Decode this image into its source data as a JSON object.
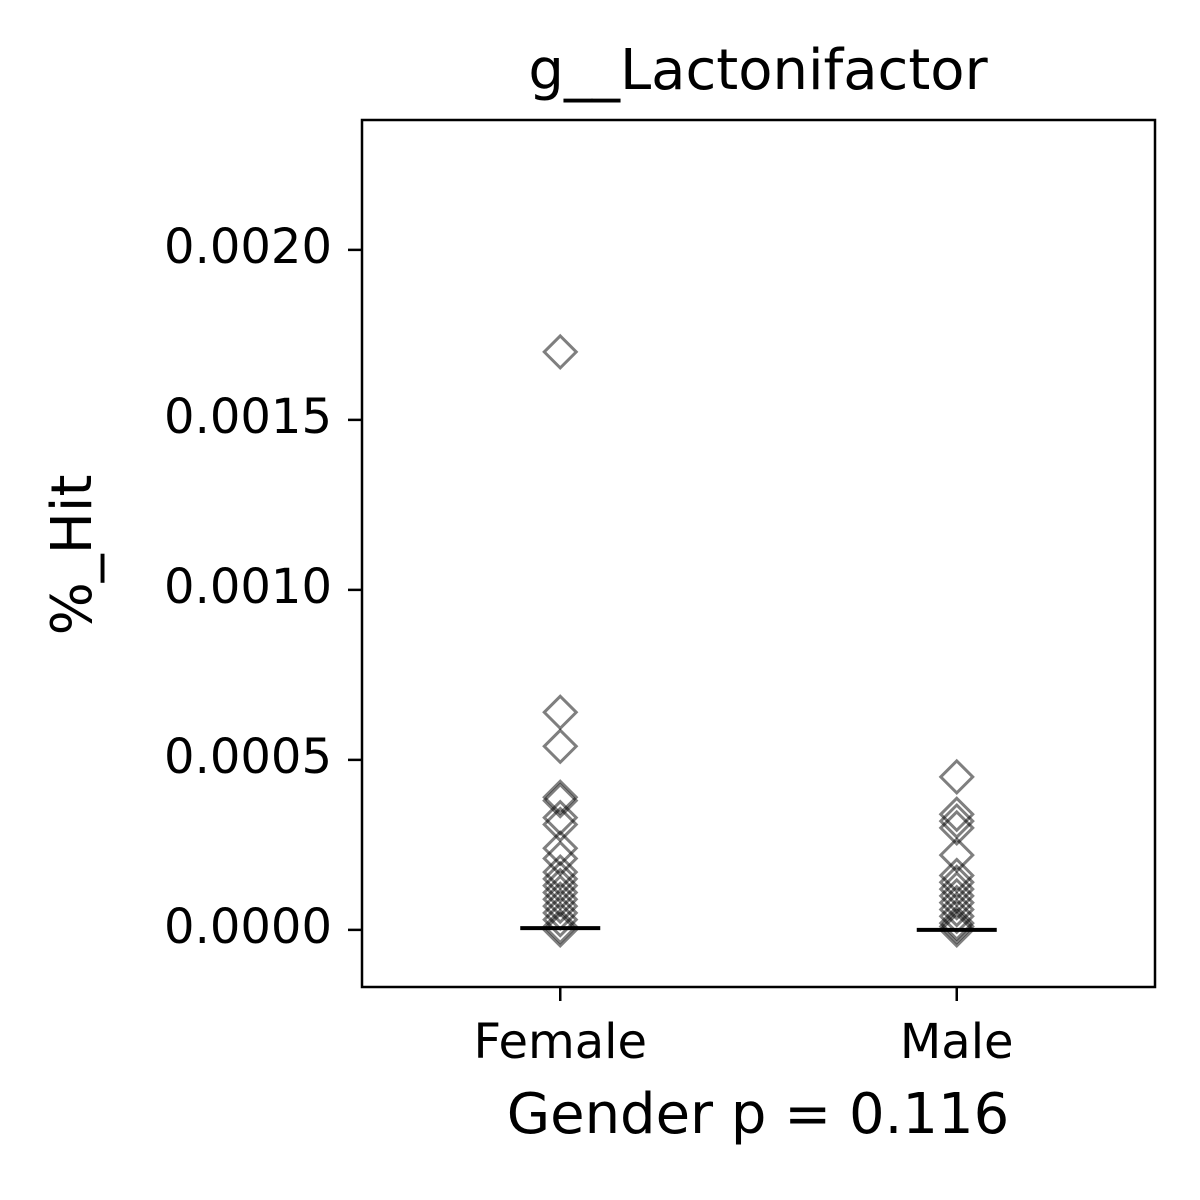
{
  "chart_data": {
    "type": "strip",
    "title": "g__Lactonifactor",
    "x_label": "Gender p = 0.116",
    "y_label": "%_Hit",
    "categories": [
      "Female",
      "Male"
    ],
    "values": [
      [
        0.0017,
        0.00064,
        0.00054,
        0.00039,
        0.00038,
        0.00033,
        0.00031,
        0.00024,
        0.00021,
        0.00017,
        0.00015,
        0.00013,
        0.00011,
        9e-05,
        7e-05,
        5e-05,
        3e-05,
        1e-05,
        0.0
      ],
      [
        0.00045,
        0.00034,
        0.00032,
        0.0003,
        0.00022,
        0.00016,
        0.00014,
        0.00012,
        0.0001,
        8e-05,
        6e-05,
        4e-05,
        2e-05,
        1e-05,
        0.0
      ]
    ],
    "medians": [
      5e-06,
      0.0
    ],
    "color": "#000000",
    "marker": "diamond",
    "ylim": [
      -0.000168,
      0.002382
    ],
    "yticks": [
      {
        "value": 0,
        "label": "0.0000"
      },
      {
        "value": 0.0005,
        "label": "0.0005"
      },
      {
        "value": 0.001,
        "label": "0.0010"
      },
      {
        "value": 0.0015,
        "label": "0.0015"
      },
      {
        "value": 0.002,
        "label": "0.0020"
      }
    ]
  }
}
